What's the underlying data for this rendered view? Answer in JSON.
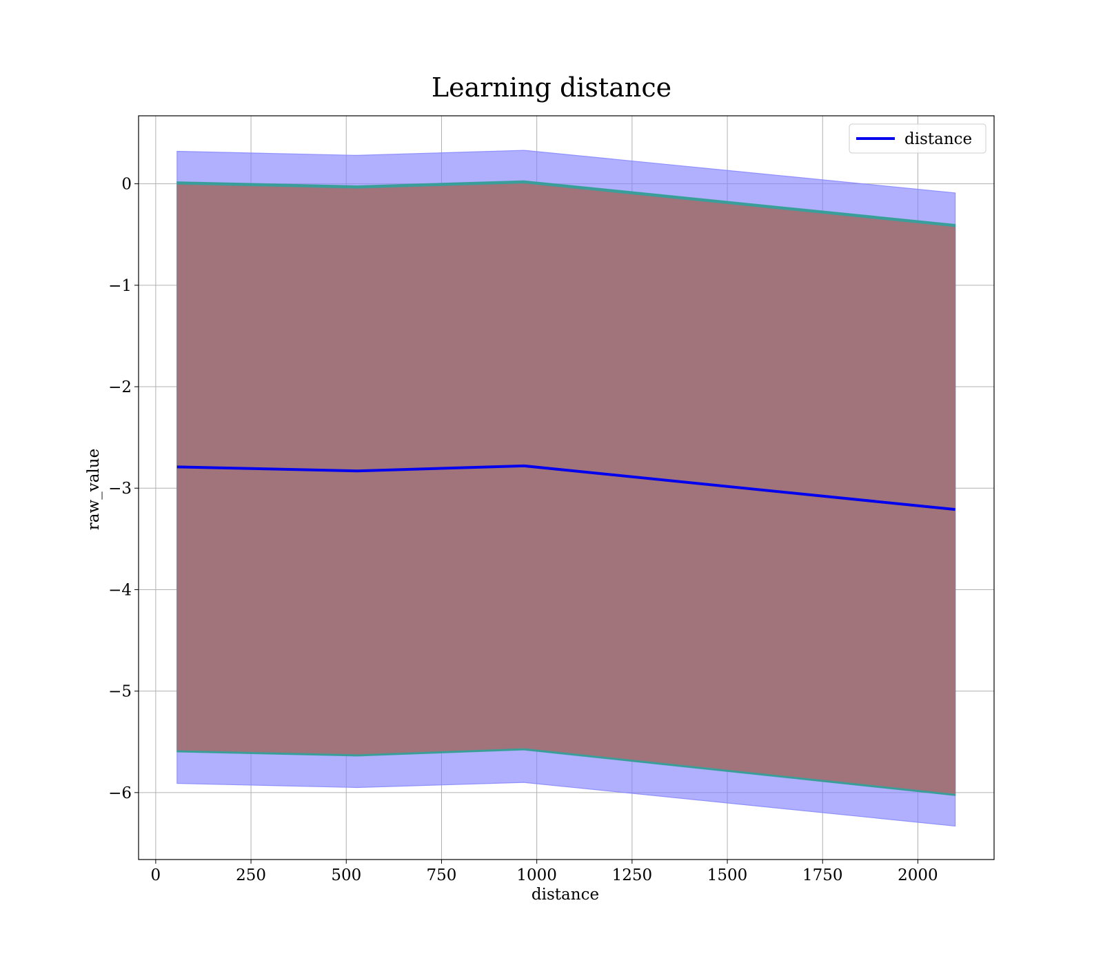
{
  "chart_data": {
    "type": "line",
    "title": "Learning distance",
    "xlabel": "distance",
    "ylabel": "raw_value",
    "xlim": [
      -45,
      2200
    ],
    "ylim": [
      -6.66,
      0.67
    ],
    "x_ticks": [
      0,
      250,
      500,
      750,
      1000,
      1250,
      1500,
      1750,
      2000
    ],
    "y_ticks": [
      0,
      -1,
      -2,
      -3,
      -4,
      -5,
      -6
    ],
    "x_tick_labels": [
      "0",
      "250",
      "500",
      "750",
      "1000",
      "1250",
      "1500",
      "1750",
      "2000"
    ],
    "y_tick_labels": [
      "0",
      "−1",
      "−2",
      "−3",
      "−4",
      "−5",
      "−6"
    ],
    "grid": true,
    "legend": {
      "position": "top-right",
      "entries": [
        "distance"
      ]
    },
    "x": [
      56,
      528,
      966,
      2098
    ],
    "series": [
      {
        "name": "distance",
        "color": "#0000ee",
        "values": [
          -2.79,
          -2.83,
          -2.78,
          -3.21
        ]
      }
    ],
    "bands": [
      {
        "color": "#8080ff",
        "opacity": 0.62,
        "upper": [
          0.32,
          0.28,
          0.33,
          -0.09
        ],
        "lower": [
          -5.91,
          -5.95,
          -5.9,
          -6.33
        ]
      },
      {
        "color": "#2e9d8f",
        "opacity": 0.9,
        "upper": [
          0.02,
          -0.02,
          0.03,
          -0.4
        ],
        "lower": [
          -5.6,
          -5.64,
          -5.58,
          -6.03
        ]
      },
      {
        "color": "#a1737a",
        "opacity": 1.0,
        "upper": [
          -0.01,
          -0.05,
          0.0,
          -0.43
        ],
        "lower": [
          -5.58,
          -5.62,
          -5.56,
          -6.01
        ]
      }
    ]
  }
}
